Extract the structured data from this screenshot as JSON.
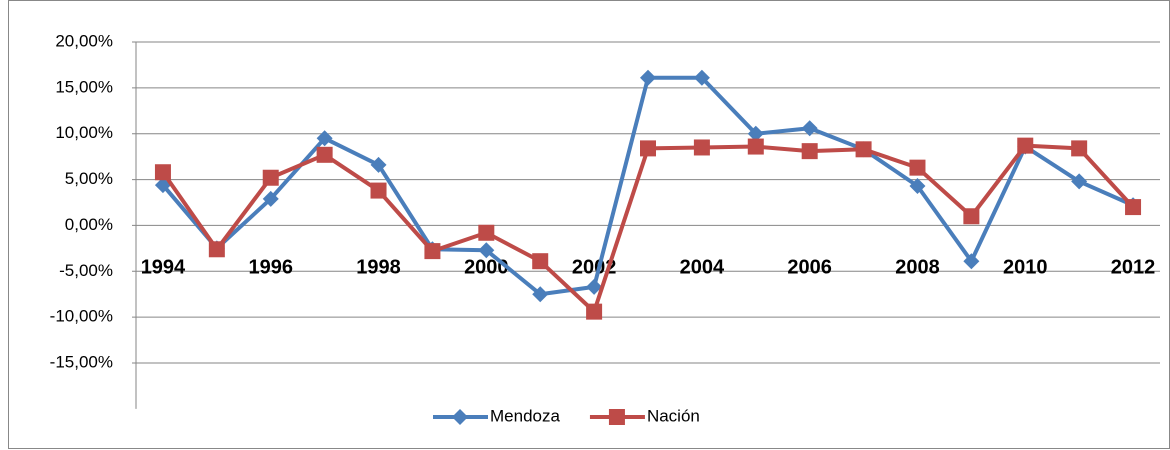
{
  "chart_data": {
    "type": "line",
    "categories": [
      "1994",
      null,
      "1996",
      null,
      "1998",
      null,
      "2000",
      null,
      "2002",
      null,
      "2004",
      null,
      "2006",
      null,
      "2008",
      null,
      "2010",
      null,
      "2012"
    ],
    "series": [
      {
        "name": "Mendoza",
        "color": "#4a7ebb",
        "marker": "diamond",
        "values": [
          4.4,
          -2.5,
          2.9,
          9.5,
          6.6,
          -2.6,
          -2.7,
          -7.5,
          -6.7,
          16.1,
          16.1,
          10.0,
          10.6,
          8.3,
          4.3,
          -3.9,
          8.6,
          4.8,
          2.2
        ]
      },
      {
        "name": "Nación",
        "color": "#be4b48",
        "marker": "square",
        "values": [
          5.8,
          -2.6,
          5.2,
          7.7,
          3.8,
          -2.8,
          -0.8,
          -3.9,
          -9.4,
          8.4,
          8.5,
          8.6,
          8.1,
          8.3,
          6.3,
          1.0,
          8.7,
          8.4,
          2.0
        ]
      }
    ],
    "ylim": [
      -20,
      20
    ],
    "yticks": [
      {
        "value": -15,
        "label": "-15,00%"
      },
      {
        "value": -10,
        "label": "-10,00%"
      },
      {
        "value": -5,
        "label": "-5,00%"
      },
      {
        "value": 0,
        "label": "0,00%"
      },
      {
        "value": 5,
        "label": "5,00%"
      },
      {
        "value": 10,
        "label": "10,00%"
      },
      {
        "value": 15,
        "label": "15,00%"
      },
      {
        "value": 20,
        "label": "20,00%"
      }
    ],
    "grid": true,
    "legend": "bottom"
  }
}
